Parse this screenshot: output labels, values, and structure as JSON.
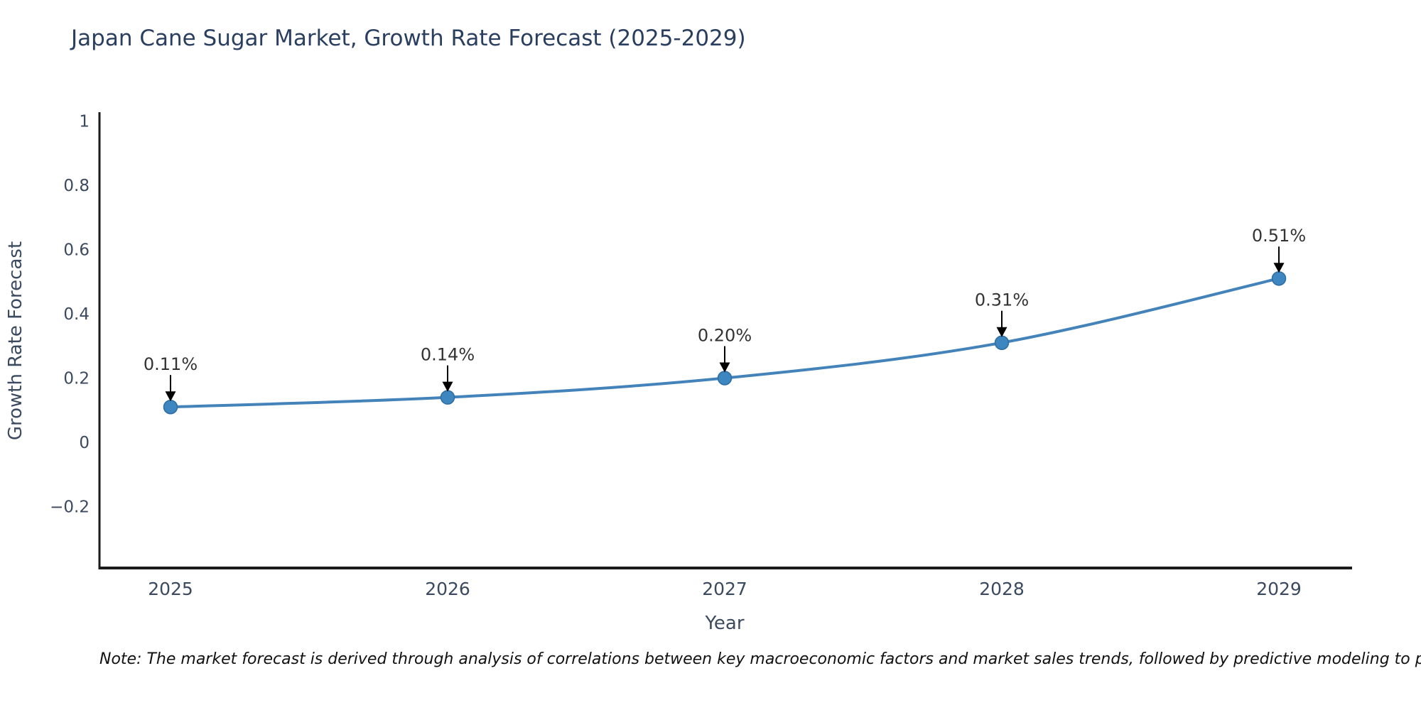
{
  "title": "Japan Cane Sugar Market, Growth Rate Forecast (2025-2029)",
  "note": "Note: The market forecast is derived through analysis of correlations between key macroeconomic factors and market sales trends, followed by predictive modeling to project future sal",
  "chart_data": {
    "type": "line",
    "title": "Japan Cane Sugar Market, Growth Rate Forecast (2025-2029)",
    "categories": [
      "2025",
      "2026",
      "2027",
      "2028",
      "2029"
    ],
    "values": [
      0.11,
      0.14,
      0.2,
      0.31,
      0.51
    ],
    "point_labels": [
      "0.11%",
      "0.14%",
      "0.20%",
      "0.31%",
      "0.51%"
    ],
    "xlabel": "Year",
    "ylabel": "Growth Rate Forecast",
    "yticks": [
      1,
      0.8,
      0.6,
      0.4,
      0.2,
      0,
      -0.2
    ],
    "ytick_labels": [
      "1",
      "0.8",
      "0.6",
      "0.4",
      "0.2",
      "0",
      "−0.2"
    ],
    "ylim": [
      -0.39,
      1.02
    ],
    "grid": false,
    "legend": "none",
    "colors": {
      "line": "#4383ba",
      "marker_fill": "#3d86c0",
      "marker_edge": "#2e6da3",
      "annotation_text": "#333333",
      "arrow": "#000000",
      "spine": "#1a1a1a",
      "tick_label": "#3b4a5f",
      "axis_title": "#3b4a5f",
      "title": "#2a3f5f"
    }
  }
}
